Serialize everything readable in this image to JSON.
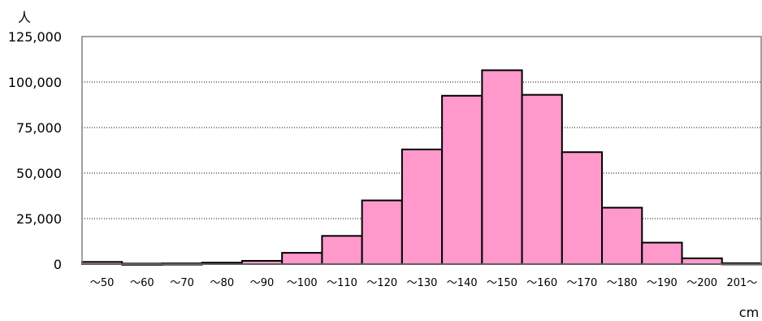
{
  "chart_data": {
    "type": "bar",
    "title": "",
    "xlabel": "cm",
    "ylabel": "人",
    "ylim": [
      0,
      125000
    ],
    "yticks": [
      "0",
      "25,000",
      "50,000",
      "75,000",
      "100,000",
      "125,000"
    ],
    "ytick_values": [
      0,
      25000,
      50000,
      75000,
      100000,
      125000
    ],
    "categories": [
      "～50",
      "～60",
      "～70",
      "～80",
      "～90",
      "～100",
      "～110",
      "～120",
      "～130",
      "～140",
      "～150",
      "～160",
      "～170",
      "～180",
      "～190",
      "～200",
      "201～"
    ],
    "values": [
      1200,
      300,
      400,
      800,
      1800,
      6200,
      15500,
      35000,
      63000,
      92500,
      106500,
      93000,
      61500,
      31000,
      11800,
      3200,
      500
    ],
    "grid": true,
    "grid_style": "dotted",
    "bar_color": "#ff99cc",
    "edge_color": "#000000"
  }
}
